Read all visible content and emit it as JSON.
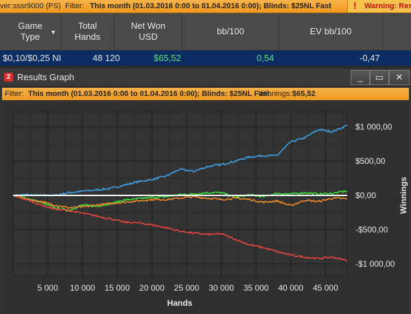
{
  "top_bar": {
    "player_prefix": "ver:",
    "player": "sssr9000 (PS)",
    "filter_label": "Filter:",
    "filter_value": "This month (01.03.2016 0:00 to 01.04.2016 0:00); Blinds: $25NL Fast",
    "warning_icon": "exclamation-icon",
    "warning_text": "Warning: Rest"
  },
  "table": {
    "headers": [
      {
        "line1": "Game",
        "line2": "Type"
      },
      {
        "line1": "Total",
        "line2": "Hands"
      },
      {
        "line1": "Net Won",
        "line2": "USD"
      },
      {
        "line1": "bb/100",
        "line2": ""
      },
      {
        "line1": "EV bb/100",
        "line2": ""
      }
    ],
    "row": {
      "game_type": "$0,10/$0,25 NI",
      "total_hands": "48 120",
      "net_won": "$65,52",
      "bb100": "0,54",
      "ev_bb100": "-0,47"
    }
  },
  "window": {
    "badge": "2",
    "title": "Results Graph",
    "controls": [
      "minimize-icon",
      "restore-icon",
      "close-icon"
    ]
  },
  "filter_bar": {
    "filter_label": "Filter:",
    "filter_value": "This month (01.03.2016 0:00 to 01.04.2016 0:00); Blinds: $25NL Fast",
    "winnings_label": "Winnings:",
    "winnings_value": "$65,52"
  },
  "colors": {
    "blue_line": "#3da0e6",
    "green_line": "#3ee23e",
    "orange_line": "#ef8a2a",
    "red_line": "#e0453d",
    "zero_line": "#ffffff",
    "orange_bar": "#f39a1e",
    "selected_row": "#0b2d63"
  },
  "chart_data": {
    "type": "line",
    "xlabel": "Hands",
    "ylabel": "Winnings",
    "x_ticks": [
      "5 000",
      "10 000",
      "15 000",
      "20 000",
      "25 000",
      "30 000",
      "35 000",
      "40 000",
      "45 000"
    ],
    "y_ticks": [
      "$1 000,00",
      "$500,00",
      "$0,00",
      "-$500,00",
      "-$1 000,00"
    ],
    "xlim": [
      0,
      48120
    ],
    "ylim": [
      -1180,
      1220
    ],
    "grid": true,
    "x": [
      0,
      2000,
      4000,
      6000,
      8000,
      10000,
      12000,
      14000,
      16000,
      18000,
      20000,
      22000,
      24000,
      26000,
      28000,
      30000,
      32000,
      34000,
      36000,
      38000,
      40000,
      42000,
      44000,
      46000,
      48120
    ],
    "series": [
      {
        "color_key": "blue_line",
        "values": [
          0,
          10,
          0,
          0,
          40,
          60,
          80,
          100,
          150,
          200,
          230,
          280,
          380,
          350,
          420,
          450,
          500,
          560,
          580,
          580,
          780,
          840,
          960,
          930,
          1020
        ]
      },
      {
        "color_key": "green_line",
        "values": [
          0,
          -40,
          -100,
          -180,
          -220,
          -140,
          -160,
          -120,
          -70,
          -50,
          -30,
          -20,
          10,
          20,
          40,
          40,
          -30,
          10,
          -20,
          30,
          20,
          40,
          20,
          30,
          65
        ]
      },
      {
        "color_key": "orange_line",
        "values": [
          0,
          -60,
          -90,
          -140,
          -180,
          -170,
          -140,
          -120,
          -100,
          -80,
          -60,
          -60,
          -40,
          -20,
          -40,
          -60,
          -40,
          -60,
          -100,
          -80,
          -150,
          -70,
          -90,
          -40,
          -50
        ]
      },
      {
        "color_key": "red_line",
        "values": [
          0,
          -60,
          -140,
          -200,
          -220,
          -260,
          -300,
          -340,
          -390,
          -400,
          -430,
          -470,
          -520,
          -550,
          -570,
          -560,
          -640,
          -720,
          -760,
          -820,
          -870,
          -900,
          -920,
          -900,
          -950
        ]
      }
    ]
  }
}
